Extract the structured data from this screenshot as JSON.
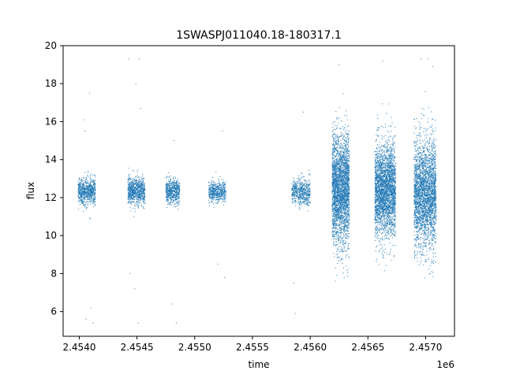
{
  "chart_data": {
    "type": "scatter",
    "title": "1SWASPJ011040.18-180317.1",
    "xlabel": "time",
    "ylabel": "flux",
    "x_offset_label": "1e6",
    "xlim": [
      2453760,
      2457150
    ],
    "ylim": [
      4.7,
      20.0
    ],
    "x_ticks": [
      2453900,
      2454400,
      2454900,
      2455400,
      2455900,
      2456400,
      2456900
    ],
    "x_tick_labels": [
      "2.4540",
      "2.4545",
      "2.4550",
      "2.4555",
      "2.4560",
      "2.4565",
      "2.4570"
    ],
    "y_ticks": [
      6,
      8,
      10,
      12,
      14,
      16,
      18,
      20
    ],
    "y_tick_labels": [
      "6",
      "8",
      "10",
      "12",
      "14",
      "16",
      "18",
      "20"
    ],
    "grid": false,
    "legend": "none",
    "marker_color": "#1f77b4",
    "clusters": [
      {
        "x_start": 2453890,
        "x_end": 2454040,
        "center": 12.35,
        "spread": 0.35,
        "points": 700
      },
      {
        "x_start": 2454320,
        "x_end": 2454470,
        "center": 12.35,
        "spread": 0.35,
        "points": 750
      },
      {
        "x_start": 2454650,
        "x_end": 2454770,
        "center": 12.35,
        "spread": 0.3,
        "points": 550
      },
      {
        "x_start": 2455020,
        "x_end": 2455170,
        "center": 12.3,
        "spread": 0.28,
        "points": 500
      },
      {
        "x_start": 2455740,
        "x_end": 2455900,
        "center": 12.3,
        "spread": 0.35,
        "points": 550
      },
      {
        "x_start": 2456090,
        "x_end": 2456240,
        "center": 12.4,
        "spread": 1.4,
        "points": 2800
      },
      {
        "x_start": 2456460,
        "x_end": 2456640,
        "center": 12.4,
        "spread": 1.2,
        "points": 2800
      },
      {
        "x_start": 2456800,
        "x_end": 2456990,
        "center": 12.2,
        "spread": 1.4,
        "points": 2800
      }
    ],
    "outliers": [
      {
        "x": 2453990,
        "y": 17.5
      },
      {
        "x": 2453940,
        "y": 16.1
      },
      {
        "x": 2453960,
        "y": 5.6
      },
      {
        "x": 2454020,
        "y": 5.4
      },
      {
        "x": 2454000,
        "y": 6.2
      },
      {
        "x": 2453950,
        "y": 15.5
      },
      {
        "x": 2454330,
        "y": 19.3
      },
      {
        "x": 2454420,
        "y": 19.3
      },
      {
        "x": 2454390,
        "y": 18.0
      },
      {
        "x": 2454430,
        "y": 16.7
      },
      {
        "x": 2454410,
        "y": 5.4
      },
      {
        "x": 2454380,
        "y": 7.2
      },
      {
        "x": 2454340,
        "y": 8.0
      },
      {
        "x": 2454740,
        "y": 5.4
      },
      {
        "x": 2454700,
        "y": 6.4
      },
      {
        "x": 2454720,
        "y": 15.0
      },
      {
        "x": 2455140,
        "y": 15.5
      },
      {
        "x": 2455100,
        "y": 8.5
      },
      {
        "x": 2455160,
        "y": 7.8
      },
      {
        "x": 2455840,
        "y": 16.5
      },
      {
        "x": 2455760,
        "y": 7.5
      },
      {
        "x": 2455770,
        "y": 5.9
      },
      {
        "x": 2456150,
        "y": 19.0
      },
      {
        "x": 2456530,
        "y": 19.2
      },
      {
        "x": 2456860,
        "y": 19.3
      },
      {
        "x": 2456920,
        "y": 19.3
      },
      {
        "x": 2456960,
        "y": 18.9
      }
    ]
  }
}
